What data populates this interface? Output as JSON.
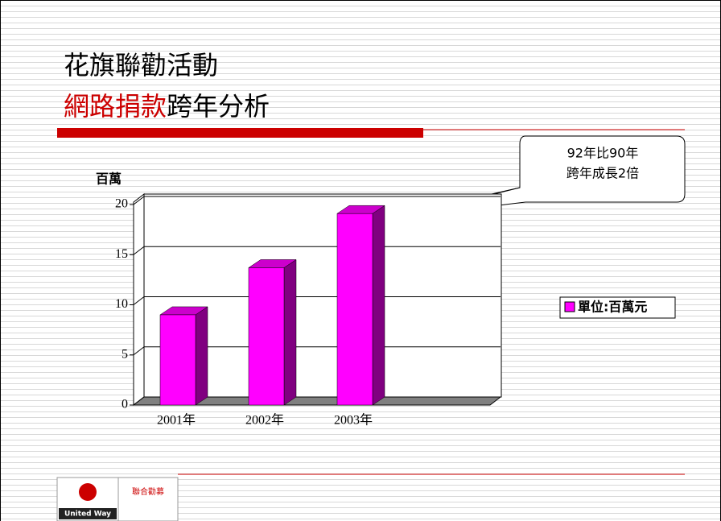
{
  "title_line1": "花旗聯勸活動",
  "title_line2_red": "網路捐款",
  "title_line2_black": "跨年分析",
  "callout": [
    "92年比90年",
    "跨年成長2倍"
  ],
  "logo": {
    "name": "United Way",
    "chinese": "聯合勸募"
  },
  "chart_data": {
    "type": "bar3d",
    "y_axis_label": "百萬",
    "categories": [
      "2001年",
      "2002年",
      "2003年"
    ],
    "series": [
      {
        "name": "單位:百萬元",
        "color": "#ff00ff",
        "values": [
          9,
          13.7,
          19.1
        ]
      }
    ],
    "ylim": [
      0,
      20
    ],
    "yticks": [
      0,
      5,
      10,
      15,
      20
    ],
    "grid": true,
    "legend": "right"
  }
}
